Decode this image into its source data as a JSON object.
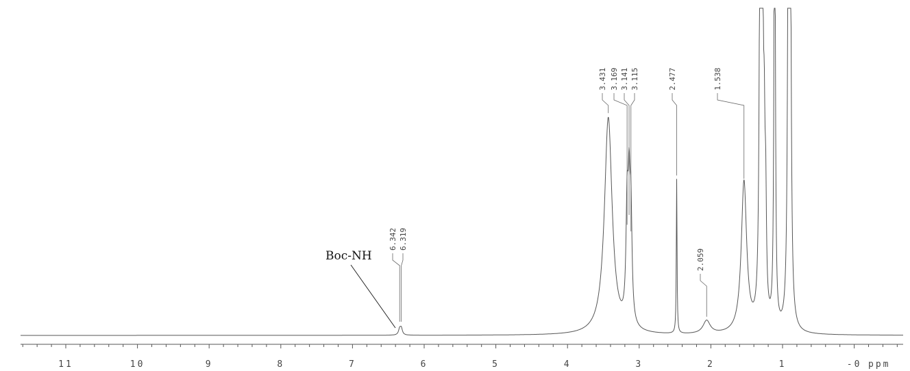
{
  "chart_data": {
    "type": "line",
    "x_unit": "ppm",
    "xlim": [
      11.7,
      -1.6
    ],
    "x_ticks": [
      11,
      10,
      9,
      8,
      7,
      6,
      5,
      4,
      3,
      2,
      1,
      0
    ],
    "x_tick_labels": [
      "11",
      "10",
      "9",
      "8",
      "7",
      "6",
      "5",
      "4",
      "3",
      "2",
      "1",
      "-0"
    ],
    "x_minor_step": 0.2,
    "y_relative_max": 100,
    "grid": false,
    "peaks": [
      {
        "shift": 6.342,
        "label": "6.342",
        "height": 1.8,
        "width": 0.018
      },
      {
        "shift": 6.319,
        "label": "6.319",
        "height": 2.0,
        "width": 0.018
      },
      {
        "shift": 3.431,
        "label": "3.431",
        "height": 66,
        "width": 0.065
      },
      {
        "shift": 3.169,
        "label": "3.169",
        "height": 32,
        "width": 0.018
      },
      {
        "shift": 3.141,
        "label": "3.141",
        "height": 35,
        "width": 0.018
      },
      {
        "shift": 3.115,
        "label": "3.115",
        "height": 30,
        "width": 0.018
      },
      {
        "shift": 2.477,
        "label": "2.477",
        "height": 47,
        "width": 0.006
      },
      {
        "shift": 2.059,
        "label": "2.059",
        "height": 4,
        "width": 0.06
      },
      {
        "shift": 1.538,
        "label": "1.538",
        "height": 46,
        "width": 0.045
      },
      {
        "shift": 1.31,
        "label": "",
        "height": 180,
        "width": 0.012
      },
      {
        "shift": 1.285,
        "label": "",
        "height": 180,
        "width": 0.012
      },
      {
        "shift": 1.255,
        "label": "",
        "height": 40,
        "width": 0.012
      },
      {
        "shift": 1.235,
        "label": "",
        "height": 30,
        "width": 0.012
      },
      {
        "shift": 1.11,
        "label": "",
        "height": 180,
        "width": 0.01
      },
      {
        "shift": 0.915,
        "label": "",
        "height": 180,
        "width": 0.012
      },
      {
        "shift": 0.895,
        "label": "",
        "height": 180,
        "width": 0.012
      }
    ],
    "annotations": [
      {
        "text": "Boc-NH",
        "points_to": 6.33
      }
    ]
  }
}
